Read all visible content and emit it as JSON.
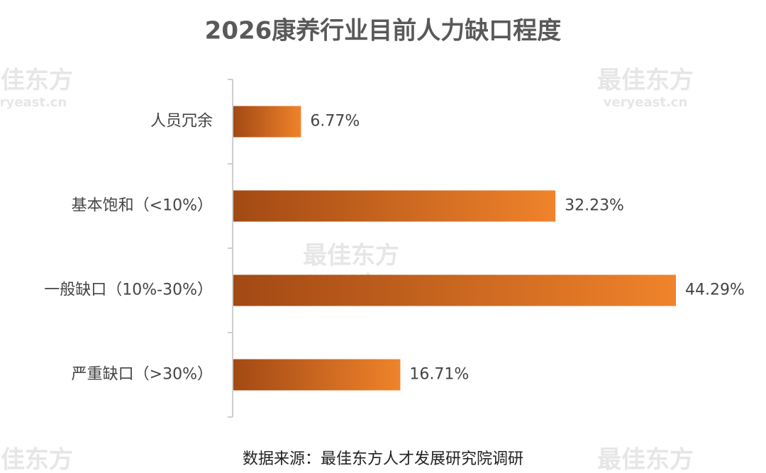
{
  "chart_data": {
    "type": "bar",
    "orientation": "horizontal",
    "title": "2026康养行业目前人力缺口程度",
    "categories": [
      "人员冗余",
      "基本饱和（<10%）",
      "一般缺口（10%-30%）",
      "严重缺口（>30%）"
    ],
    "values": [
      6.77,
      32.23,
      44.29,
      16.71
    ],
    "value_labels": [
      "6.77%",
      "32.23%",
      "44.29%",
      "16.71%"
    ],
    "color": "#f0832b",
    "source": "数据来源：最佳东方人才发展研究院调研",
    "watermark": {
      "brand": "最佳东方",
      "site": "veryeast.cn"
    }
  }
}
